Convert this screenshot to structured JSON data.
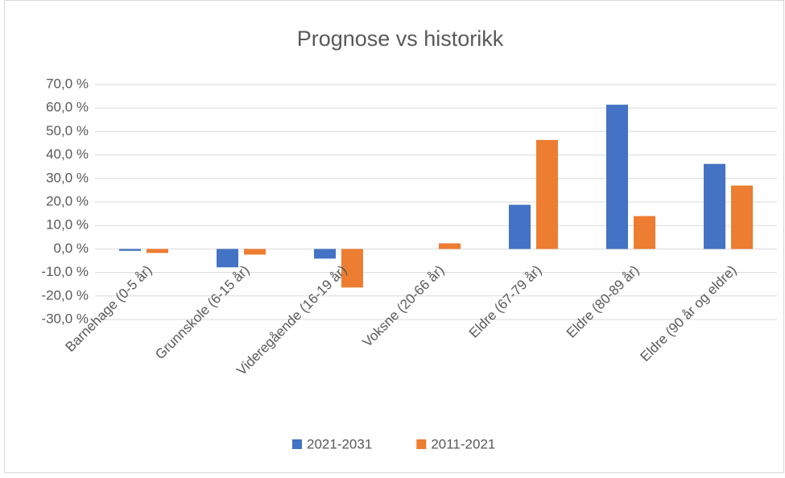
{
  "chart_data": {
    "type": "bar",
    "title": "Prognose vs historikk",
    "categories": [
      "Barnehage (0-5 år)",
      "Grunnskole (6-15 år)",
      "Videregående (16-19 år)",
      "Voksne (20-66 år)",
      "Eldre (67-79 år)",
      "Eldre (80-89 år)",
      "Eldre (90 år og eldre)"
    ],
    "series": [
      {
        "name": "2021-2031",
        "color": "#4472c4",
        "values": [
          -0.8,
          -7.8,
          -4.1,
          0,
          18.8,
          61.4,
          36.2
        ]
      },
      {
        "name": "2011-2021",
        "color": "#ed7d31",
        "values": [
          -1.7,
          -2.4,
          -16.4,
          2.4,
          46.4,
          14,
          27
        ]
      }
    ],
    "ylim": [
      -30,
      70
    ],
    "yticks": [
      {
        "value": -30,
        "label": "-30,0 %"
      },
      {
        "value": -20,
        "label": "-20,0 %"
      },
      {
        "value": -10,
        "label": "-10,0 %"
      },
      {
        "value": 0,
        "label": "0,0 %"
      },
      {
        "value": 10,
        "label": "10,0 %"
      },
      {
        "value": 20,
        "label": "20,0 %"
      },
      {
        "value": 30,
        "label": "30,0 %"
      },
      {
        "value": 40,
        "label": "40,0 %"
      },
      {
        "value": 50,
        "label": "50,0 %"
      },
      {
        "value": 60,
        "label": "60,0 %"
      },
      {
        "value": 70,
        "label": "70,0 %"
      }
    ],
    "grid": true,
    "legend": "bottom"
  }
}
